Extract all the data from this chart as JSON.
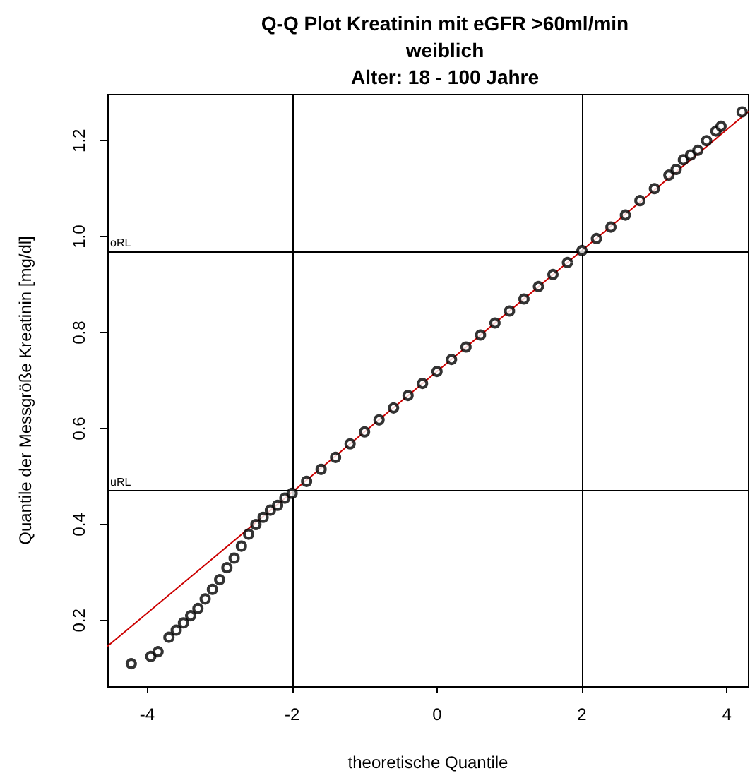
{
  "chart_data": {
    "type": "scatter",
    "title": "Q-Q Plot Kreatinin mit eGFR >60ml/min\nweiblich\nAlter: 18 - 100 Jahre",
    "xlabel": "theoretische Quantile",
    "ylabel": "Quantile der Messgröße Kreatinin [mg/dl]",
    "xlim": [
      -4.55,
      4.3
    ],
    "ylim": [
      0.063,
      1.296
    ],
    "xticks": [
      -4,
      -2,
      0,
      2,
      4
    ],
    "yticks": [
      {
        "value": 0.2,
        "label": "0.2"
      },
      {
        "value": 0.4,
        "label": "0.4"
      },
      {
        "value": 0.6,
        "label": "0.6"
      },
      {
        "value": 0.8,
        "label": "0.8"
      },
      {
        "value": 1,
        "label": "1.0"
      },
      {
        "value": 1.2,
        "label": "1.2"
      }
    ],
    "grid": false,
    "marker": "circle",
    "series": [
      {
        "color": "#000000",
        "x": [
          -4.22,
          -3.95,
          -3.85,
          -3.7,
          -3.6,
          -3.5,
          -3.4,
          -3.3,
          -3.2,
          -3.1,
          -3.0,
          -2.9,
          -2.8,
          -2.7,
          -2.6,
          -2.5,
          -2.4,
          -2.3,
          -2.2,
          -2.1,
          -2.0,
          -1.8,
          -1.6,
          -1.4,
          -1.2,
          -1.0,
          -0.8,
          -0.6,
          -0.4,
          -0.2,
          0,
          0.2,
          0.4,
          0.6,
          0.8,
          1.0,
          1.2,
          1.4,
          1.6,
          1.8,
          2.0,
          2.2,
          2.4,
          2.6,
          2.8,
          3.0,
          3.2,
          3.3,
          3.4,
          3.5,
          3.6,
          3.72,
          3.85,
          3.92,
          4.21
        ],
        "values": [
          0.11,
          0.125,
          0.135,
          0.165,
          0.18,
          0.195,
          0.21,
          0.225,
          0.245,
          0.265,
          0.285,
          0.31,
          0.33,
          0.355,
          0.38,
          0.4,
          0.415,
          0.43,
          0.44,
          0.455,
          0.465,
          0.49,
          0.515,
          0.54,
          0.568,
          0.593,
          0.618,
          0.643,
          0.669,
          0.694,
          0.719,
          0.744,
          0.77,
          0.795,
          0.82,
          0.845,
          0.87,
          0.896,
          0.921,
          0.946,
          0.971,
          0.996,
          1.02,
          1.045,
          1.075,
          1.1,
          1.128,
          1.14,
          1.16,
          1.17,
          1.18,
          1.2,
          1.22,
          1.23,
          1.26
        ]
      },
      {
        "type": "line",
        "color": "#cc0000",
        "marker": "none",
        "x": [
          -4.55,
          4.3
        ],
        "values": [
          0.146,
          1.261
        ]
      }
    ],
    "ref_lines": [
      {
        "axis": "x",
        "value": -2,
        "color": "#000000"
      },
      {
        "axis": "x",
        "value": 2,
        "color": "#000000"
      },
      {
        "axis": "y",
        "value": 0.971,
        "label": "oRL",
        "color": "#000000"
      },
      {
        "axis": "y",
        "value": 0.467,
        "label": "uRL",
        "color": "#000000"
      }
    ]
  }
}
